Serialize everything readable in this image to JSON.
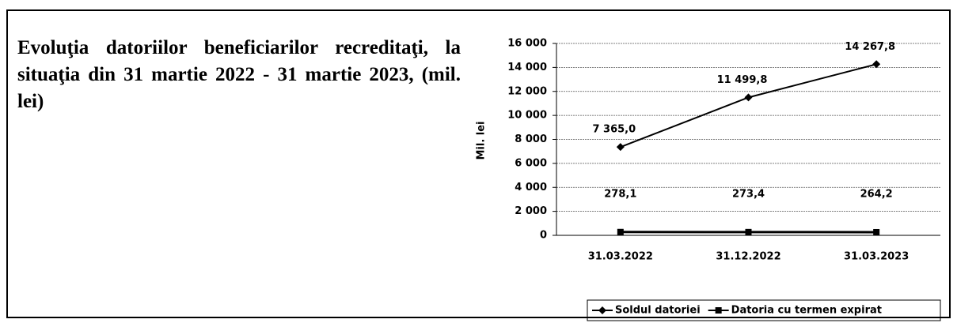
{
  "chart_data": {
    "type": "line",
    "title": "Evoluţia datoriilor beneficiarilor recreditaţi, la situaţia din 31 martie 2022 - 31 martie 2023, (mil. lei)",
    "y_label": "Mil. lei",
    "categories": [
      "31.03.2022",
      "31.12.2022",
      "31.03.2023"
    ],
    "series": [
      {
        "name": "Soldul datoriei",
        "color": "#000000",
        "marker": "diamond",
        "values": [
          7365.0,
          11499.8,
          14267.8
        ],
        "value_labels": [
          "7 365,0",
          "11 499,8",
          "14 267,8"
        ]
      },
      {
        "name": "Datoria cu termen expirat",
        "color": "#000000",
        "marker": "square",
        "values": [
          278.1,
          273.4,
          264.2
        ],
        "value_labels": [
          "278,1",
          "273,4",
          "264,2"
        ]
      }
    ],
    "ylim": [
      0,
      16000
    ],
    "yticks": [
      0,
      {
        "value": 2000,
        "label": "2 000"
      },
      {
        "value": 4000,
        "label": "4 000"
      },
      {
        "value": 6000,
        "label": "6 000"
      },
      {
        "value": 8000,
        "label": "8 000"
      },
      {
        "value": 10000,
        "label": "10 000"
      },
      {
        "value": 12000,
        "label": "12 000"
      },
      {
        "value": 14000,
        "label": "14 000"
      },
      {
        "value": 16000,
        "label": "16 000"
      }
    ],
    "grid": true,
    "legend": "bottom"
  }
}
